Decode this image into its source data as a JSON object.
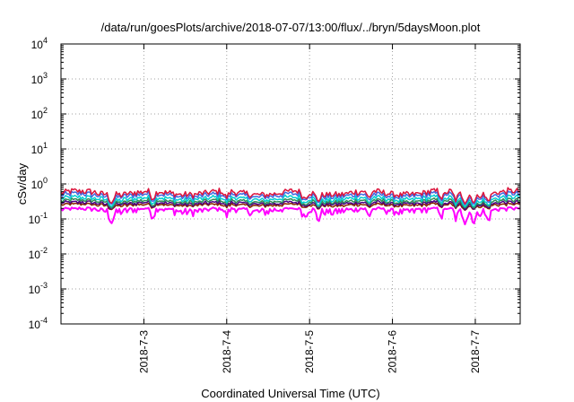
{
  "chart_data": {
    "type": "line",
    "title": "/data/run/goesPlots/archive/2018-07-07/13:00/flux/../bryn/5daysMoon.plot",
    "xlabel": "Coordinated Universal Time (UTC)",
    "ylabel": "cSv/day",
    "yscale": "log",
    "ylim": [
      0.0001,
      10000
    ],
    "xlim": [
      "2018-07-02 00:00",
      "2018-07-07 13:00"
    ],
    "grid": true,
    "x_ticks": [
      "2018-7-3",
      "2018-7-4",
      "2018-7-5",
      "2018-7-6",
      "2018-7-7"
    ],
    "y_ticks": [
      {
        "value": 0.0001,
        "base": "10",
        "exp": "-4"
      },
      {
        "value": 0.001,
        "base": "10",
        "exp": "-3"
      },
      {
        "value": 0.01,
        "base": "10",
        "exp": "-2"
      },
      {
        "value": 0.1,
        "base": "10",
        "exp": "-1"
      },
      {
        "value": 1,
        "base": "10",
        "exp": "0"
      },
      {
        "value": 10,
        "base": "10",
        "exp": "1"
      },
      {
        "value": 100,
        "base": "10",
        "exp": "2"
      },
      {
        "value": 1000,
        "base": "10",
        "exp": "3"
      },
      {
        "value": 10000,
        "base": "10",
        "exp": "4"
      }
    ],
    "series": [
      {
        "color": "#ff00ff",
        "base": 0.19
      },
      {
        "color": "#8b2500",
        "base": 0.25
      },
      {
        "color": "#4b0082",
        "base": 0.28
      },
      {
        "color": "#2e8b57",
        "base": 0.32
      },
      {
        "color": "#00ced1",
        "base": 0.38
      },
      {
        "color": "#4169e1",
        "base": 0.47
      },
      {
        "color": "#dc143c",
        "base": 0.55
      }
    ]
  }
}
